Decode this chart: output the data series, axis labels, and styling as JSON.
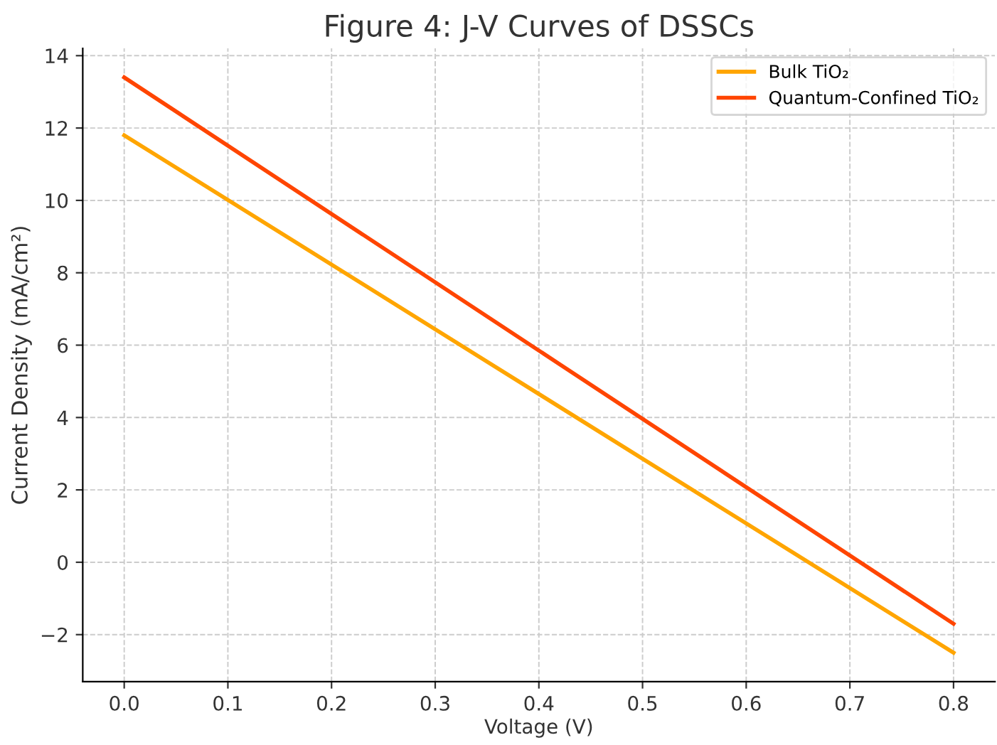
{
  "chart_data": {
    "type": "line",
    "title": "Figure 4: J-V Curves of DSSCs",
    "xlabel": "Voltage (V)",
    "ylabel": "Current Density (mA/cm²)",
    "x": [
      0.0,
      0.8
    ],
    "series": [
      {
        "name": "Bulk TiO₂",
        "color": "#ffa500",
        "values": [
          11.8,
          -2.5
        ]
      },
      {
        "name": "Quantum-Confined TiO₂",
        "color": "#ff4500",
        "values": [
          13.4,
          -1.7
        ]
      }
    ],
    "xlim": [
      -0.04,
      0.84
    ],
    "ylim": [
      -3.3,
      14.2
    ],
    "xticks": [
      {
        "value": 0,
        "label": "0.0"
      },
      0.1,
      0.2,
      0.3,
      0.4,
      0.5,
      0.6,
      0.7,
      0.8
    ],
    "yticks": [
      {
        "value": -2,
        "label": "−2"
      },
      0,
      2,
      4,
      6,
      8,
      10,
      12,
      14
    ],
    "grid": true,
    "legend": "top right",
    "line_style": "solid",
    "marker": "none"
  }
}
